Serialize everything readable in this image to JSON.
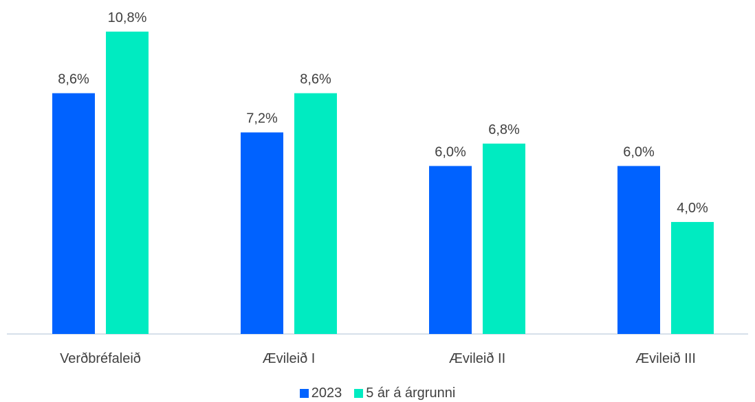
{
  "chart_data": {
    "type": "bar",
    "title": "",
    "xlabel": "",
    "ylabel": "",
    "categories": [
      "Verðbréfaleið",
      "Ævileið I",
      "Ævileið II",
      "Ævileið III"
    ],
    "series": [
      {
        "name": "2023",
        "color": "#0062FF",
        "values": [
          8.6,
          7.2,
          6.0,
          6.0
        ],
        "labels": [
          "8,6%",
          "7,2%",
          "6,0%",
          "6,0%"
        ]
      },
      {
        "name": "5 ár á árgrunni",
        "color": "#00EBC1",
        "values": [
          10.8,
          8.6,
          6.8,
          4.0
        ],
        "labels": [
          "10,8%",
          "8,6%",
          "6,8%",
          "4,0%"
        ]
      }
    ],
    "ylim": [
      0,
      10.8
    ],
    "grid": false,
    "legend_position": "bottom"
  }
}
